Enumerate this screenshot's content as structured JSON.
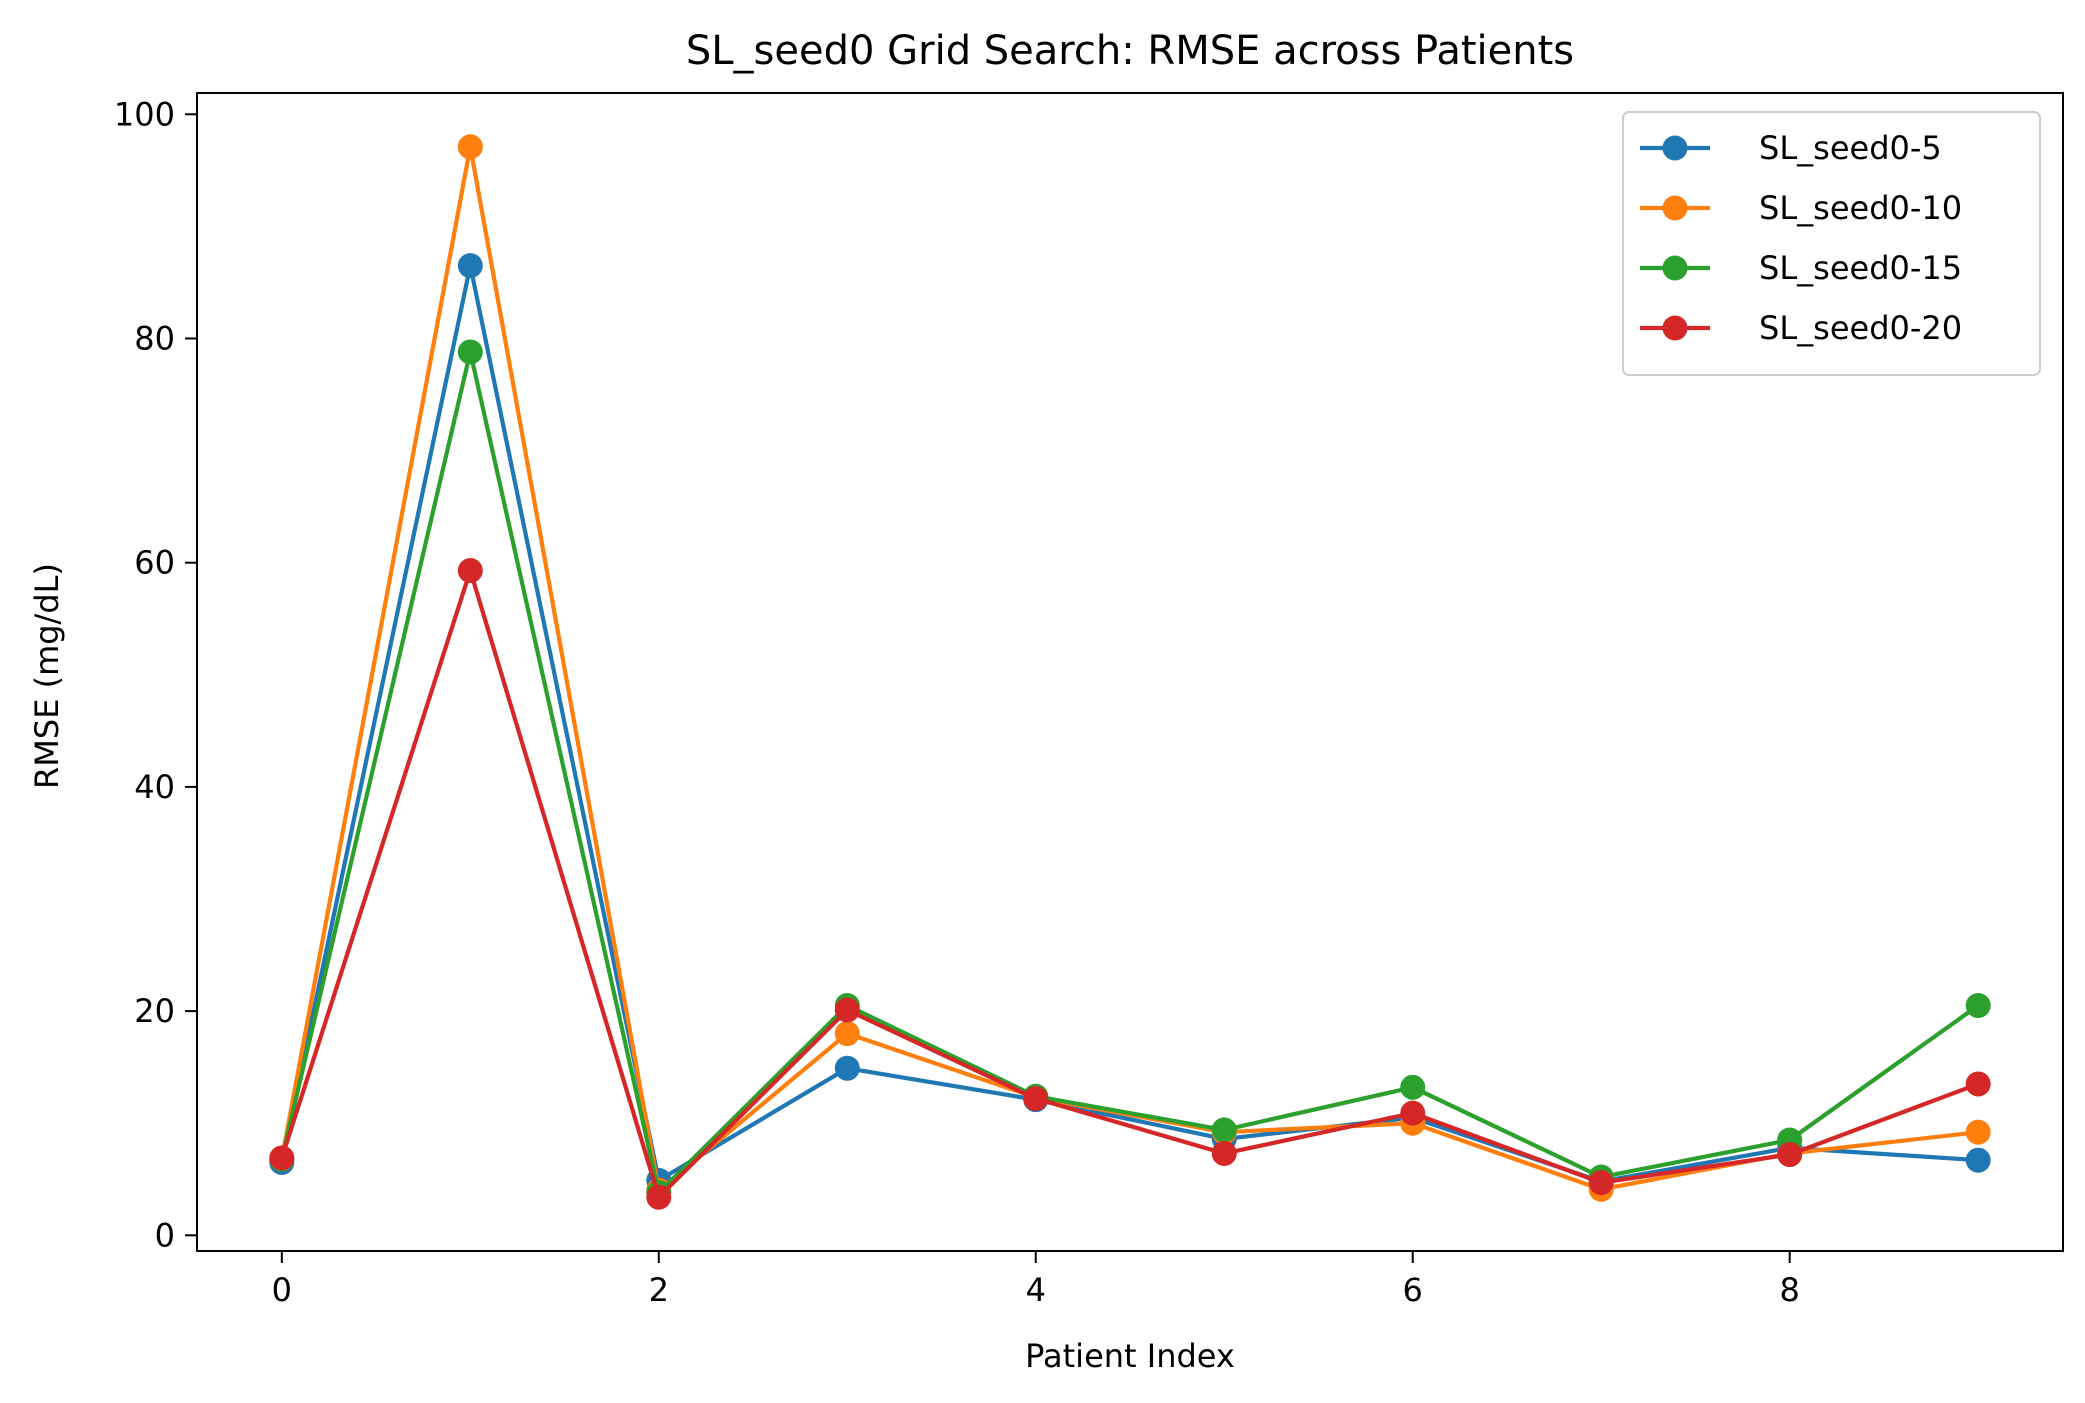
{
  "chart_data": {
    "type": "line",
    "title": "SL_seed0 Grid Search: RMSE across Patients",
    "xlabel": "Patient Index",
    "ylabel": "RMSE (mg/dL)",
    "xlim": [
      -0.45,
      9.45
    ],
    "ylim": [
      -1.4,
      101.9
    ],
    "x_ticks": [
      0,
      2,
      4,
      6,
      8
    ],
    "y_ticks": [
      0,
      20,
      40,
      60,
      80,
      100
    ],
    "x": [
      0,
      1,
      2,
      3,
      4,
      5,
      6,
      7,
      8,
      9
    ],
    "grid": false,
    "legend_position": "top-right",
    "series": [
      {
        "name": "SL_seed0-5",
        "color": "#1f77b4",
        "values": [
          6.5,
          86.5,
          4.9,
          14.9,
          12.1,
          8.6,
          10.5,
          4.8,
          7.8,
          6.7
        ]
      },
      {
        "name": "SL_seed0-10",
        "color": "#ff7f0e",
        "values": [
          6.8,
          97.1,
          4.0,
          18.0,
          12.3,
          9.2,
          10.0,
          4.1,
          7.3,
          9.2
        ]
      },
      {
        "name": "SL_seed0-15",
        "color": "#2ca02c",
        "values": [
          6.8,
          78.8,
          3.8,
          20.5,
          12.4,
          9.4,
          13.2,
          5.2,
          8.5,
          20.5
        ]
      },
      {
        "name": "SL_seed0-20",
        "color": "#d62728",
        "values": [
          6.9,
          59.3,
          3.4,
          20.1,
          12.2,
          7.3,
          10.9,
          4.7,
          7.2,
          13.5
        ]
      }
    ]
  }
}
